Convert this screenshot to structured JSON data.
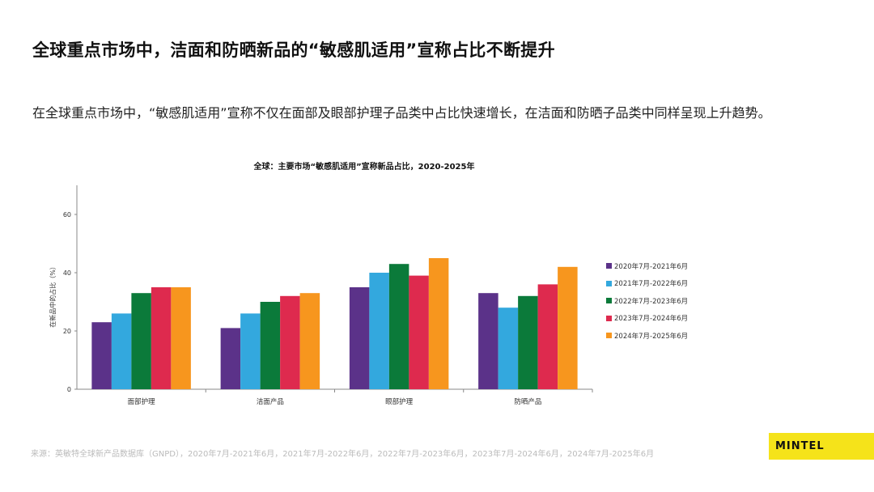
{
  "slide": {
    "title": "全球重点市场中，洁面和防晒新品的“敏感肌适用”宣称占比不断提升",
    "body": "在全球重点市场中，“敏感肌适用”宣称不仅在面部及眼部护理子品类中占比快速增长，在洁面和防晒子品类中同样呈现上升趋势。",
    "source": "来源：英敏特全球新产品数据库（GNPD），2020年7月-2021年6月，2021年7月-2022年6月，2022年7月-2023年6月，2023年7月-2024年6月，2024年7月-2025年6月",
    "logo": "MINTEL"
  },
  "chart_data": {
    "type": "bar",
    "title": "全球：主要市场“敏感肌适用”宣称新品占比，2020-2025年",
    "ylabel": "在新品中的占比（%）",
    "xlabel": "",
    "ylim": [
      0,
      70
    ],
    "yticks": [
      "0",
      "20",
      "40",
      "60"
    ],
    "grid": false,
    "legend_position": "right",
    "categories": [
      "面部护理",
      "洁面产品",
      "眼部护理",
      "防晒产品"
    ],
    "series": [
      {
        "name": "2020年7月-2021年6月",
        "color": "#5b3289",
        "values": [
          23,
          21,
          35,
          33
        ]
      },
      {
        "name": "2021年7月-2022年6月",
        "color": "#33a8de",
        "values": [
          26,
          26,
          40,
          28
        ]
      },
      {
        "name": "2022年7月-2023年6月",
        "color": "#0b7a3a",
        "values": [
          33,
          30,
          43,
          32
        ]
      },
      {
        "name": "2023年7月-2024年6月",
        "color": "#de2a4e",
        "values": [
          35,
          32,
          39,
          36
        ]
      },
      {
        "name": "2024年7月-2025年6月",
        "color": "#f7961e",
        "values": [
          35,
          33,
          45,
          42
        ]
      }
    ]
  }
}
